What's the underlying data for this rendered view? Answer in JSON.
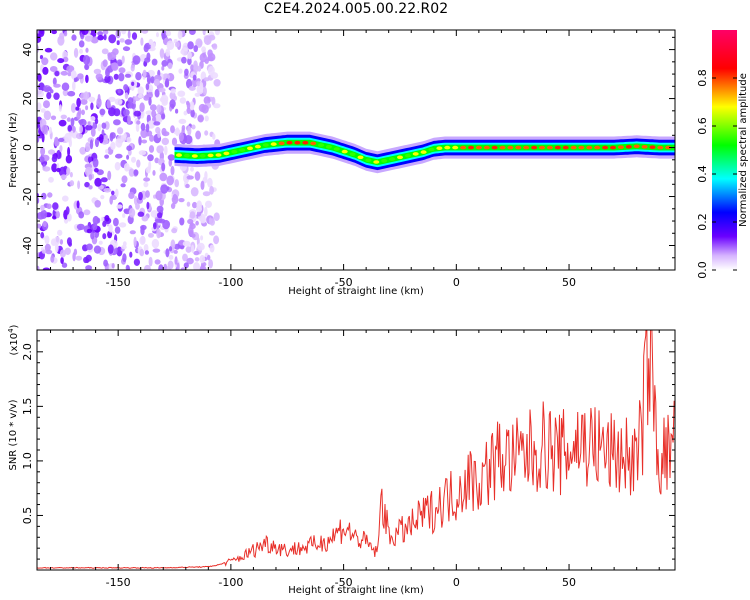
{
  "title": "C2E4.2024.005.00.22.R02",
  "chart_data": [
    {
      "type": "heatmap",
      "xlabel": "Height of straight line (km)",
      "ylabel": "Frequency (Hz)",
      "xlim": [
        -186,
        97
      ],
      "ylim": [
        -50,
        48
      ],
      "xticks": [
        -150,
        -100,
        -50,
        0,
        50
      ],
      "yticks": [
        -40,
        -20,
        0,
        20,
        40
      ],
      "colorbar": {
        "label": "Normalized spectral amplitude",
        "range": [
          0,
          1
        ],
        "ticks": [
          "0.0",
          "0.2",
          "0.4",
          "0.6",
          "0.8"
        ],
        "colors": [
          "#ffffff",
          "#d6b3ff",
          "#6a00ff",
          "#0000ff",
          "#00ffff",
          "#00ff00",
          "#ffff00",
          "#ff0000",
          "#ff0066"
        ]
      },
      "noise_region_x": [
        -186,
        -106
      ],
      "ridge": {
        "x": [
          -125,
          -115,
          -105,
          -95,
          -85,
          -75,
          -65,
          -55,
          -45,
          -40,
          -35,
          -30,
          -25,
          -20,
          -15,
          -10,
          -5,
          0,
          10,
          20,
          30,
          40,
          50,
          60,
          70,
          80,
          90,
          97
        ],
        "y": [
          -3,
          -3.5,
          -3,
          -1,
          1,
          2,
          2,
          0,
          -3,
          -5,
          -6,
          -5,
          -4,
          -3,
          -2,
          -0.5,
          0,
          0,
          0,
          0,
          0,
          0,
          0,
          0,
          0,
          0.5,
          0,
          0
        ]
      }
    },
    {
      "type": "line",
      "xlabel": "Height of straight line (km)",
      "ylabel": "SNR (10 * v/v)",
      "ylabel_scale": "(x10",
      "ylabel_exponent": "4",
      "ylabel_scale_close": ")",
      "color": "#e8302a",
      "xlim": [
        -186,
        97
      ],
      "ylim": [
        0,
        2.2
      ],
      "xticks": [
        -150,
        -100,
        -50,
        0,
        50
      ],
      "yticks": [
        0.5,
        1.0,
        1.5,
        2.0
      ],
      "series": [
        {
          "x": [
            -186,
            -160,
            -130,
            -110,
            -105,
            -100,
            -95,
            -90,
            -85,
            -80,
            -75,
            -70,
            -65,
            -60,
            -55,
            -50,
            -45,
            -40,
            -35,
            -33,
            -30,
            -25,
            -20,
            -15,
            -10,
            -5,
            0,
            5,
            10,
            15,
            20,
            25,
            30,
            35,
            40,
            45,
            50,
            55,
            60,
            65,
            70,
            75,
            80,
            83,
            85,
            90,
            95,
            97
          ],
          "y": [
            0.02,
            0.02,
            0.02,
            0.03,
            0.05,
            0.08,
            0.12,
            0.18,
            0.25,
            0.22,
            0.18,
            0.2,
            0.22,
            0.25,
            0.3,
            0.4,
            0.3,
            0.25,
            0.15,
            0.7,
            0.3,
            0.35,
            0.4,
            0.5,
            0.55,
            0.65,
            0.7,
            0.85,
            0.8,
            0.95,
            1.05,
            1.0,
            1.05,
            1.1,
            1.15,
            1.05,
            1.1,
            1.2,
            1.15,
            1.1,
            1.05,
            1.05,
            1.0,
            1.4,
            2.1,
            1.0,
            1.1,
            1.2
          ]
        }
      ]
    }
  ]
}
